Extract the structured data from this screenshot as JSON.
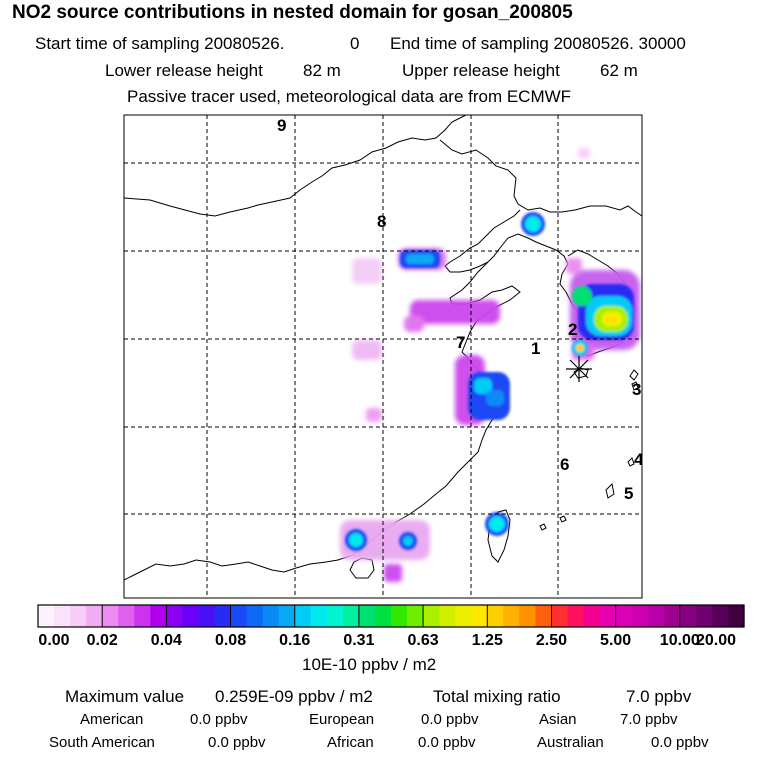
{
  "header": {
    "title": "NO2 source contributions in nested domain for gosan_200805",
    "start_label": "Start time of sampling 20080526.",
    "start_hour": "0",
    "end_label": "End time of sampling 20080526. 30000",
    "lower_label": "Lower release height",
    "lower_value": "82 m",
    "upper_label": "Upper release height",
    "upper_value": "62 m",
    "tracer_note": "Passive tracer used, meteorological data are from ECMWF"
  },
  "map": {
    "region_labels": [
      "1",
      "2",
      "3",
      "4",
      "5",
      "6",
      "7",
      "8",
      "9"
    ],
    "receptor_marker": "asterisk-receptor-icon",
    "colors": {
      "frame": "#000000",
      "grid": "#000000",
      "coast": "#000000"
    }
  },
  "colorbar": {
    "tick_labels": [
      "0.00",
      "0.02",
      "0.04",
      "0.08",
      "0.16",
      "0.31",
      "0.63",
      "1.25",
      "2.50",
      "5.00",
      "10.00",
      "20.00"
    ],
    "colors": [
      "#fdf3fd",
      "#fae3fa",
      "#f7ccf7",
      "#f2aef2",
      "#ec8bf0",
      "#e060f0",
      "#cc33ee",
      "#b000ee",
      "#8a00f0",
      "#6a00f5",
      "#4a10f5",
      "#2a2af5",
      "#1a4af5",
      "#0e6af5",
      "#0a8af5",
      "#08a8f5",
      "#00ccf5",
      "#00e8f0",
      "#00f5d0",
      "#00f0a0",
      "#00e070",
      "#00e040",
      "#30e800",
      "#70ee00",
      "#a8f000",
      "#d0f000",
      "#ecf000",
      "#ffe800",
      "#ffd000",
      "#ffb000",
      "#ff9000",
      "#ff6010",
      "#ff3030",
      "#ff1060",
      "#f40090",
      "#e800b0",
      "#dc00b8",
      "#cc00b0",
      "#b800a8",
      "#a00090",
      "#880080",
      "#700070",
      "#580058",
      "#400040"
    ],
    "unit": "10E-10 ppbv / m2"
  },
  "stats": {
    "maximum_label": "Maximum value",
    "maximum_value": "0.259E-09 ppbv / m2",
    "total_label": "Total mixing ratio",
    "total_value": "7.0 ppbv",
    "american_label": "American",
    "american_value": "0.0 ppbv",
    "european_label": "European",
    "european_value": "0.0 ppbv",
    "asian_label": "Asian",
    "asian_value": "7.0 ppbv",
    "south_american_label": "South American",
    "south_american_value": "0.0 ppbv",
    "african_label": "African",
    "african_value": "0.0 ppbv",
    "australian_label": "Australian",
    "australian_value": "0.0 ppbv"
  }
}
